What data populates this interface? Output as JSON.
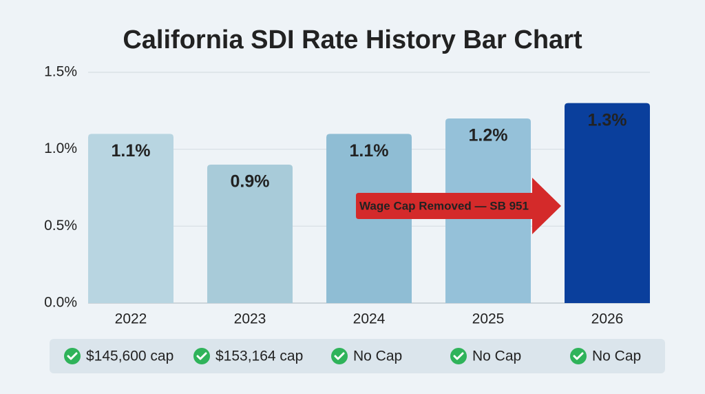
{
  "chart_data": {
    "type": "bar",
    "title": "California SDI Rate History Bar Chart",
    "categories": [
      "2022",
      "2023",
      "2024",
      "2025",
      "2026"
    ],
    "values": [
      1.1,
      0.9,
      1.1,
      1.2,
      1.3
    ],
    "value_labels": [
      "1.1%",
      "0.9%",
      "1.1%",
      "1.2%",
      "1.3%"
    ],
    "colors": [
      "#b8d5e1",
      "#a8cbd9",
      "#8fbdd4",
      "#95c1d9",
      "#0a3f9c"
    ],
    "ylim": [
      0,
      1.5
    ],
    "yticks": [
      {
        "value": 0,
        "label": "0.0%"
      },
      {
        "value": 0.5,
        "label": "0.5%"
      },
      {
        "value": 1,
        "label": "1.0%"
      },
      {
        "value": 1.5,
        "label": "1.5%"
      }
    ],
    "grid": true,
    "annotation": "Wage Cap Removed — SB 951",
    "cap_labels": [
      "$145,600 cap",
      "$153,164 cap",
      "No Cap",
      "No Cap",
      "No Cap"
    ]
  }
}
